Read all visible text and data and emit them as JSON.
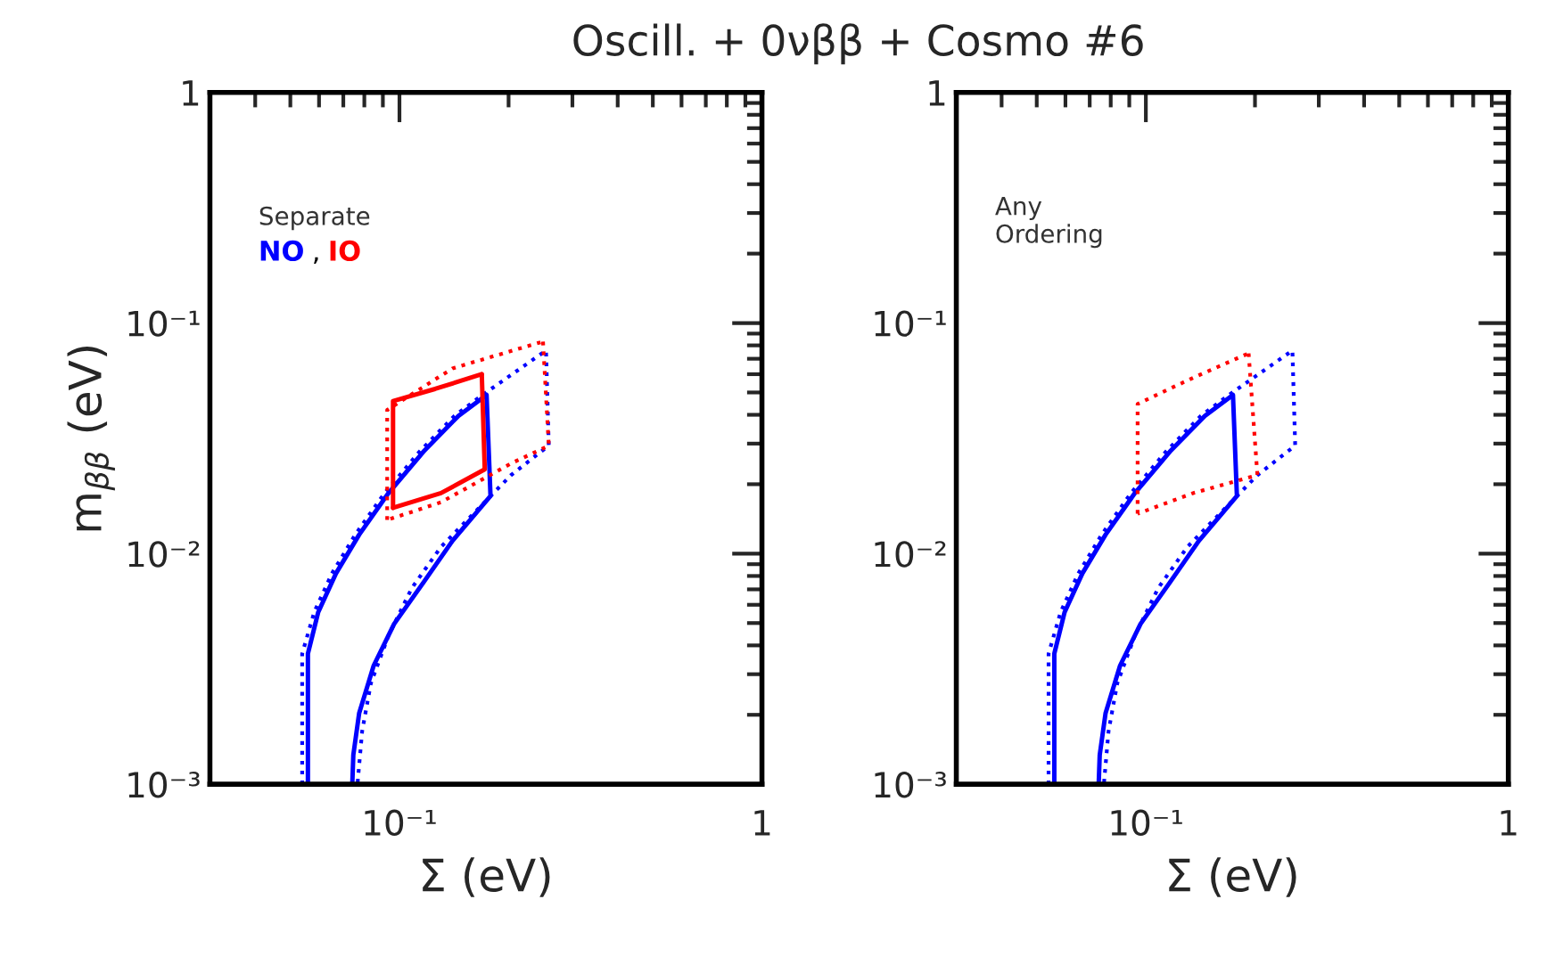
{
  "chart_data": [
    {
      "type": "line",
      "title": "Oscill. + 0νββ + Cosmo #6",
      "xlabel": "Σ (eV)",
      "ylabel": "m$_{ββ}$ (eV)",
      "log": "xy",
      "grid": false,
      "legend": "top left",
      "legend_title": "Separate",
      "annotations": [
        ","
      ],
      "xlim": [
        0.03,
        1
      ],
      "ylim": [
        0.001,
        1
      ],
      "xticks": [
        {
          "value": 0.1,
          "label": "10⁻¹"
        },
        1
      ],
      "yticks": [
        {
          "value": 0.001,
          "label": "10⁻³"
        },
        {
          "value": 0.01,
          "label": "10⁻²"
        },
        {
          "value": 0.1,
          "label": "10⁻¹"
        },
        1
      ],
      "series": [
        {
          "name": "NO",
          "color": "#0000ff",
          "line_style": "solid",
          "x": [
            0.0559,
            0.0559,
            0.0597,
            0.0668,
            0.0774,
            0.0932,
            0.1165,
            0.1455,
            0.1739,
            0.1783,
            0.1401,
            0.1165,
            0.0967,
            0.0849,
            0.0774,
            0.0746,
            0.0741
          ],
          "values": [
            0.001,
            0.00368,
            0.00558,
            0.0082,
            0.01208,
            0.01828,
            0.0277,
            0.0396,
            0.0488,
            0.01778,
            0.01138,
            0.0075,
            0.00496,
            0.00327,
            0.00203,
            0.00134,
            0.001
          ]
        },
        {
          "color": "#0000ff",
          "line_style": "dotted",
          "x": [
            0.0539,
            0.0539,
            0.0582,
            0.0651,
            0.0755,
            0.0909,
            0.1136,
            0.1419,
            0.1696,
            0.2537,
            0.2582,
            0.2031,
            0.1626,
            0.1302,
            0.1081,
            0.0932,
            0.0834,
            0.0789,
            0.0766
          ],
          "values": [
            0.001,
            0.00368,
            0.00558,
            0.0082,
            0.01208,
            0.01828,
            0.0277,
            0.0396,
            0.0488,
            0.076,
            0.0294,
            0.0219,
            0.0153,
            0.0107,
            0.00708,
            0.0044,
            0.00274,
            0.0017,
            0.001
          ]
        },
        {
          "name": "IO",
          "color": "#ff0000",
          "line_style": "solid",
          "x": [
            0.096,
            0.096,
            0.1254,
            0.1687
          ],
          "values": [
            0.0158,
            0.0459,
            0.0518,
            0.06
          ]
        },
        {
          "color": "#ff0000",
          "line_style": "solid",
          "x": [
            0.1687,
            0.1719,
            0.1302,
            0.096
          ],
          "values": [
            0.06,
            0.0232,
            0.0183,
            0.0158
          ]
        },
        {
          "color": "#ff0000",
          "line_style": "dotted",
          "x": [
            0.0925,
            0.0925,
            0.1401,
            0.2489
          ],
          "values": [
            0.014,
            0.042,
            0.0636,
            0.0831
          ]
        },
        {
          "color": "#ff0000",
          "line_style": "dotted",
          "x": [
            0.2489,
            0.2582,
            0.2031,
            0.1302,
            0.0925
          ],
          "values": [
            0.0831,
            0.0294,
            0.0246,
            0.0167,
            0.014
          ]
        }
      ]
    },
    {
      "type": "line",
      "xlabel": "Σ (eV)",
      "log": "xy",
      "grid": false,
      "annotations": [
        "Any\nOrdering"
      ],
      "xlim": [
        0.03,
        1
      ],
      "ylim": [
        0.001,
        1
      ],
      "xticks": [
        {
          "value": 0.1,
          "label": "10⁻¹"
        },
        1
      ],
      "yticks": [
        {
          "value": 0.001,
          "label": "10⁻³"
        },
        {
          "value": 0.01,
          "label": "10⁻²"
        },
        {
          "value": 0.1,
          "label": "10⁻¹"
        },
        1
      ],
      "series": [
        {
          "color": "#0000ff",
          "line_style": "solid",
          "x": [
            0.0559,
            0.0559,
            0.0597,
            0.0668,
            0.0774,
            0.0932,
            0.1165,
            0.1455,
            0.1739,
            0.1783,
            0.1401,
            0.1165,
            0.0967,
            0.0849,
            0.0774,
            0.0746,
            0.0741
          ],
          "values": [
            0.001,
            0.00368,
            0.00558,
            0.0082,
            0.01208,
            0.01828,
            0.0277,
            0.0396,
            0.0488,
            0.01778,
            0.01138,
            0.0075,
            0.00496,
            0.00327,
            0.00203,
            0.00134,
            0.001
          ]
        },
        {
          "color": "#0000ff",
          "line_style": "dotted",
          "x": [
            0.0539,
            0.0539,
            0.0582,
            0.0651,
            0.0755,
            0.0909,
            0.1136,
            0.1419,
            0.1696,
            0.2537,
            0.2582,
            0.2031,
            0.1626,
            0.1302,
            0.1081,
            0.0932,
            0.0834,
            0.0789,
            0.0766
          ],
          "values": [
            0.001,
            0.00368,
            0.00558,
            0.0082,
            0.01208,
            0.01828,
            0.0277,
            0.0396,
            0.0488,
            0.076,
            0.0294,
            0.0219,
            0.0153,
            0.0107,
            0.00708,
            0.0044,
            0.00274,
            0.0017,
            0.001
          ]
        },
        {
          "color": "#ff0000",
          "line_style": "dotted",
          "x": [
            0.0949,
            0.0949,
            0.135,
            0.1921
          ],
          "values": [
            0.0149,
            0.0446,
            0.0579,
            0.0739
          ]
        },
        {
          "color": "#ff0000",
          "line_style": "dotted",
          "x": [
            0.1921,
            0.2031,
            0.135,
            0.0949
          ],
          "values": [
            0.0739,
            0.0219,
            0.0183,
            0.0149
          ]
        }
      ]
    }
  ]
}
